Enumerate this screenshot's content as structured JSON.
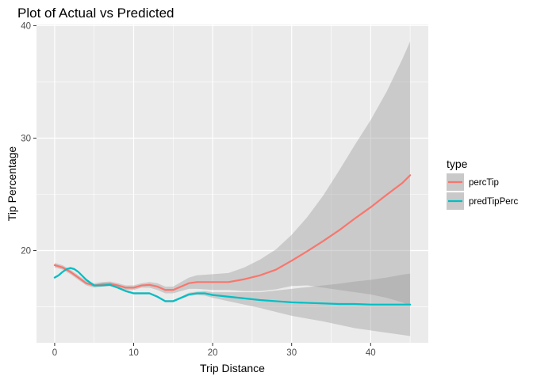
{
  "chart_data": {
    "type": "line",
    "title": "Plot of Actual vs Predicted",
    "xlabel": "Trip Distance",
    "ylabel": "Tip Percentage",
    "xlim": [
      -2.3,
      47.3
    ],
    "ylim": [
      11.8,
      40.1
    ],
    "x_ticks": [
      0,
      10,
      20,
      30,
      40
    ],
    "y_ticks": [
      20,
      30,
      40
    ],
    "grid": true,
    "legend_title": "type",
    "legend_position": "right",
    "series": [
      {
        "name": "percTip",
        "color": "#F8766D",
        "x": [
          0,
          1,
          2,
          3,
          4,
          5,
          6,
          7,
          8,
          9,
          10,
          11,
          12,
          13,
          14,
          15,
          16,
          17,
          18,
          20,
          22,
          24,
          26,
          28,
          30,
          32,
          34,
          36,
          38,
          40,
          42,
          44,
          45
        ],
        "y": [
          18.7,
          18.5,
          18.1,
          17.6,
          17.1,
          16.9,
          17.0,
          17.05,
          16.9,
          16.7,
          16.7,
          16.9,
          16.95,
          16.8,
          16.5,
          16.5,
          16.8,
          17.1,
          17.2,
          17.2,
          17.2,
          17.45,
          17.8,
          18.3,
          19.1,
          19.95,
          20.85,
          21.8,
          22.85,
          23.85,
          24.95,
          26.0,
          26.7
        ],
        "lower": [
          18.5,
          18.3,
          17.9,
          17.4,
          16.9,
          16.7,
          16.8,
          16.85,
          16.7,
          16.5,
          16.5,
          16.7,
          16.7,
          16.5,
          16.2,
          16.2,
          16.4,
          16.6,
          16.6,
          16.5,
          16.5,
          16.4,
          16.4,
          16.55,
          16.85,
          16.9,
          16.7,
          16.5,
          16.3,
          16.1,
          15.8,
          15.4,
          15.1
        ],
        "upper": [
          18.9,
          18.7,
          18.3,
          17.8,
          17.3,
          17.1,
          17.2,
          17.25,
          17.1,
          16.9,
          16.9,
          17.1,
          17.2,
          17.1,
          16.8,
          16.8,
          17.2,
          17.6,
          17.8,
          17.9,
          18.0,
          18.5,
          19.2,
          20.1,
          21.4,
          23.0,
          24.9,
          27.1,
          29.4,
          31.6,
          34.1,
          37.0,
          38.6
        ]
      },
      {
        "name": "predTipPerc",
        "color": "#00BFC4",
        "x": [
          0,
          0.5,
          1,
          1.5,
          2,
          2.5,
          3,
          4,
          5,
          6,
          7,
          8,
          9,
          10,
          11,
          12,
          13,
          14,
          15,
          16,
          17,
          18,
          19,
          20,
          22,
          24,
          26,
          28,
          30,
          32,
          34,
          36,
          38,
          40,
          42,
          44,
          45
        ],
        "y": [
          17.6,
          17.8,
          18.1,
          18.35,
          18.45,
          18.35,
          18.1,
          17.4,
          16.9,
          16.9,
          16.95,
          16.7,
          16.4,
          16.2,
          16.2,
          16.2,
          15.9,
          15.5,
          15.5,
          15.8,
          16.1,
          16.2,
          16.2,
          16.05,
          15.9,
          15.75,
          15.6,
          15.5,
          15.4,
          15.35,
          15.3,
          15.25,
          15.25,
          15.2,
          15.2,
          15.2,
          15.2
        ],
        "lower": [
          17.5,
          17.7,
          18.0,
          18.25,
          18.35,
          18.25,
          18.0,
          17.3,
          16.8,
          16.8,
          16.85,
          16.6,
          16.3,
          16.1,
          16.1,
          16.1,
          15.8,
          15.4,
          15.4,
          15.7,
          15.95,
          16.05,
          16.0,
          15.8,
          15.5,
          15.2,
          14.9,
          14.55,
          14.2,
          13.95,
          13.7,
          13.4,
          13.1,
          12.9,
          12.7,
          12.5,
          12.4
        ],
        "upper": [
          17.7,
          17.9,
          18.2,
          18.45,
          18.55,
          18.45,
          18.2,
          17.5,
          17.0,
          17.0,
          17.05,
          16.8,
          16.5,
          16.3,
          16.3,
          16.3,
          16.0,
          15.6,
          15.6,
          15.9,
          16.25,
          16.35,
          16.4,
          16.3,
          16.3,
          16.3,
          16.3,
          16.45,
          16.6,
          16.75,
          16.9,
          17.05,
          17.25,
          17.4,
          17.6,
          17.85,
          17.95
        ]
      }
    ]
  }
}
